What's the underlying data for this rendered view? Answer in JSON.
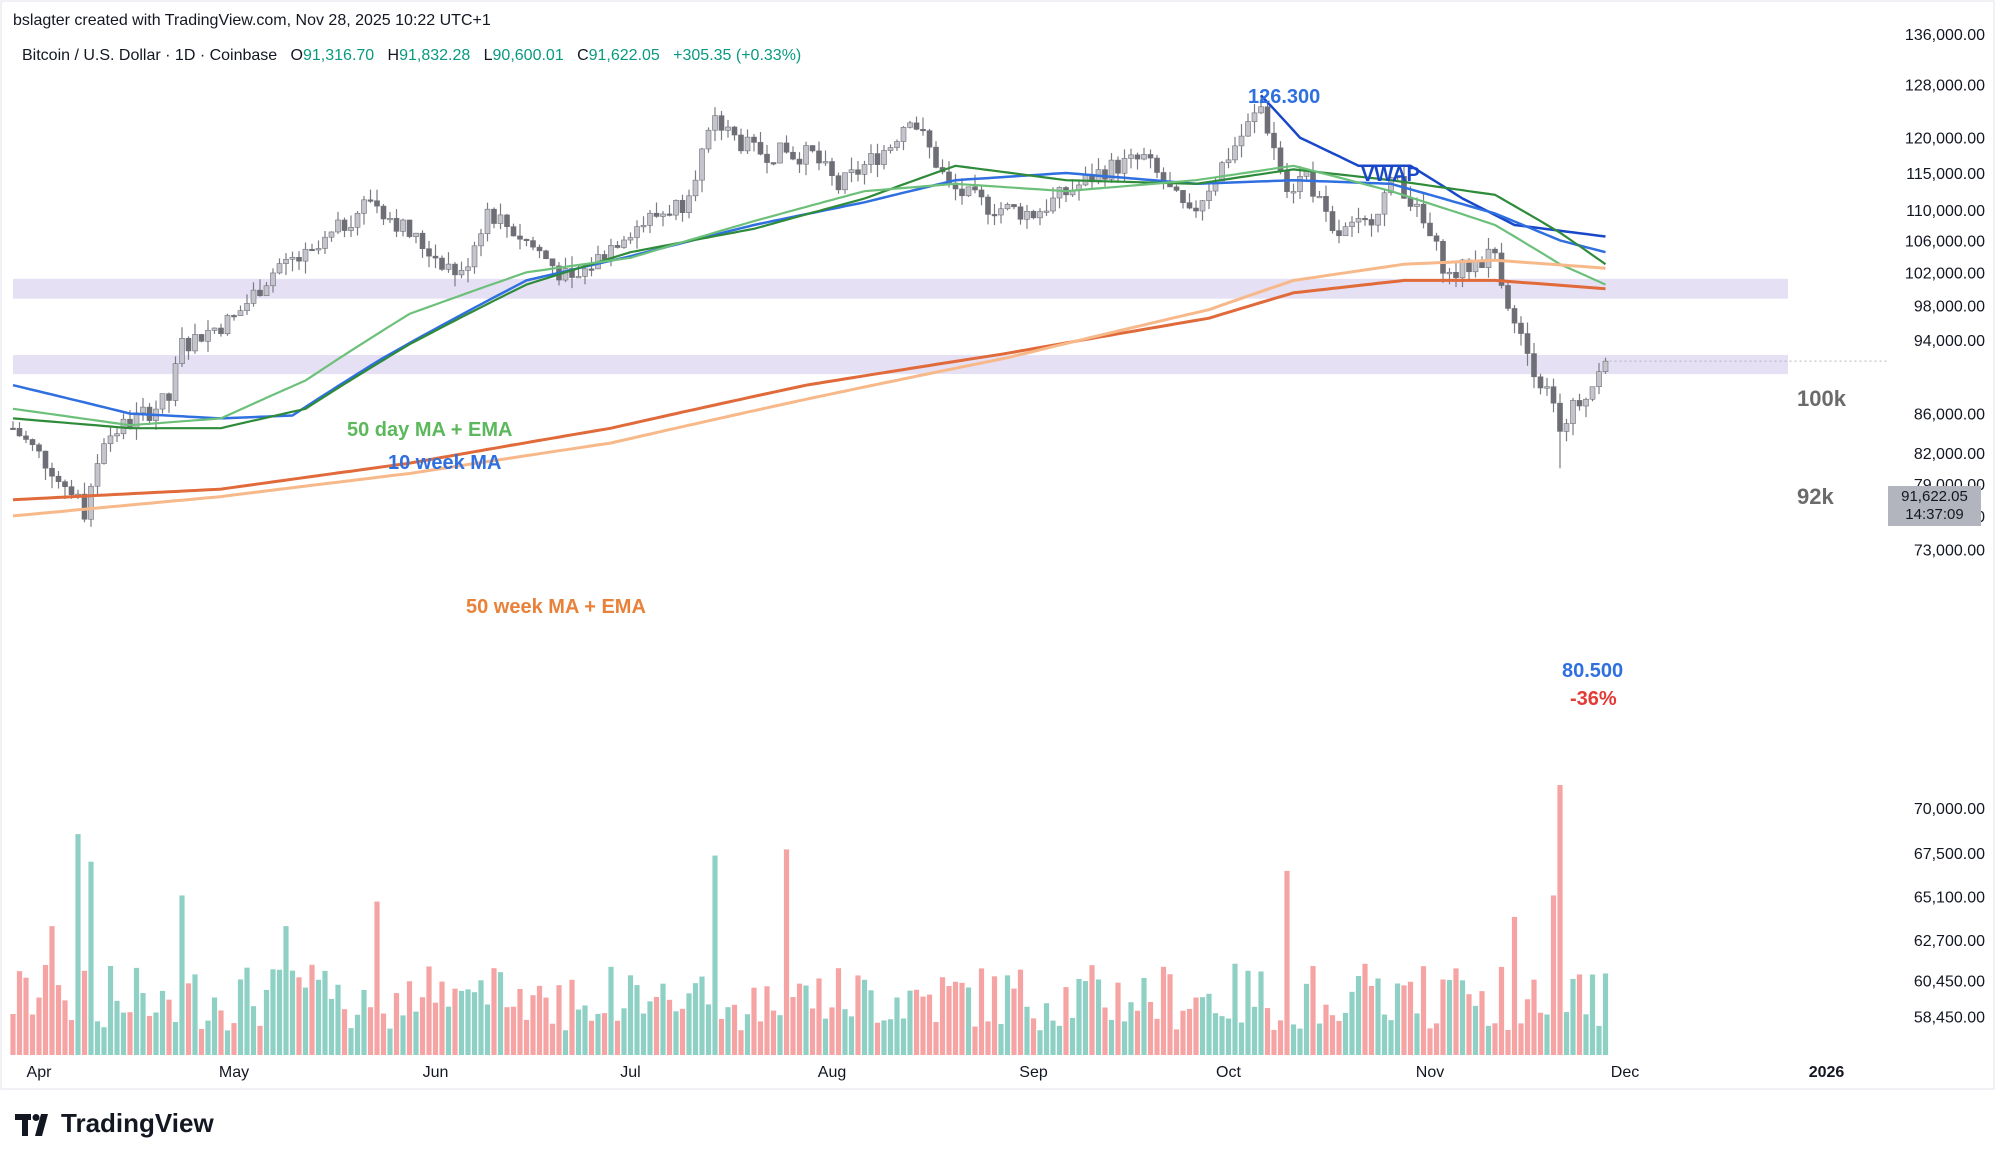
{
  "header": {
    "created_by": "bslagter created with TradingView.com, Nov 28, 2025 10:22 UTC+1",
    "symbol": "Bitcoin / U.S. Dollar · 1D · Coinbase",
    "open_label": "O",
    "open": "91,316.70",
    "high_label": "H",
    "high": "91,832.28",
    "low_label": "L",
    "low": "90,600.01",
    "close_label": "C",
    "close": "91,622.05",
    "change": "+305.35 (+0.33%)"
  },
  "annotations": {
    "high_value": "126.300",
    "vwap": "VWAP",
    "ma50": "50 day MA + EMA",
    "ma10w": "10 week MA",
    "ma50w": "50 week MA + EMA",
    "low_value": "80.500",
    "drawdown": "-36%",
    "zone_100k": "100k",
    "zone_92k": "92k"
  },
  "price_badge": {
    "price": "91,622.05",
    "countdown": "14:37:09"
  },
  "logo": {
    "text": "TradingView"
  },
  "colors": {
    "up": "#089981",
    "down": "#f23645",
    "candle": "#a9a9b0",
    "vol_up": "#8fd0c5",
    "vol_down": "#f5a3a3",
    "vwap": "#1848c9",
    "ma10w": "#2f6fe0",
    "ma50_sma": "#2e8b3a",
    "ma50_ema": "#6cc07a",
    "ma50w_sma": "#e06a3a",
    "ma50w_ema": "#f7b98a",
    "zone": "#e6e0f4",
    "blue_text": "#2f6fe0",
    "red_text": "#e53935",
    "green_text": "#5cb85c",
    "orange_text": "#e8823a"
  },
  "chart_data": {
    "type": "candlestick",
    "scale": "log",
    "ylim": [
      56600,
      137000
    ],
    "x_start": "2025-03-28",
    "x_ticks": [
      "Apr",
      "May",
      "Jun",
      "Jul",
      "Aug",
      "Sep",
      "Oct",
      "Nov",
      "Dec",
      "2026"
    ],
    "x_tick_dates": [
      "2025-04-01",
      "2025-05-01",
      "2025-06-01",
      "2025-07-01",
      "2025-08-01",
      "2025-09-01",
      "2025-10-01",
      "2025-11-01",
      "2025-12-01",
      "2026-01-01"
    ],
    "y_ticks": [
      "136,000.00",
      "128,000.00",
      "120,000.00",
      "115,000.00",
      "110,000.00",
      "106,000.00",
      "102,000.00",
      "98,000.00",
      "94,000.00",
      "86,000.00",
      "82,000.00",
      "79,000.00",
      "76,000.00",
      "73,000.00",
      "70,000.00",
      "67,500.00",
      "65,100.00",
      "62,700.00",
      "60,450.00",
      "58,450.00"
    ],
    "y_tick_values": [
      136000,
      128000,
      120000,
      115000,
      110000,
      106000,
      102000,
      98000,
      94000,
      86000,
      82000,
      79000,
      76000,
      73000,
      70000,
      67500,
      65100,
      62700,
      60450,
      58450
    ],
    "zones": [
      {
        "label": "100k",
        "from": 98800,
        "to": 101200
      },
      {
        "label": "92k",
        "from": 90200,
        "to": 92300
      }
    ],
    "close_anchors": [
      [
        "2025-03-28",
        84500
      ],
      [
        "2025-04-06",
        78500
      ],
      [
        "2025-04-08",
        76500
      ],
      [
        "2025-04-11",
        83500
      ],
      [
        "2025-04-21",
        87500
      ],
      [
        "2025-04-23",
        93500
      ],
      [
        "2025-05-01",
        96500
      ],
      [
        "2025-05-08",
        103000
      ],
      [
        "2025-05-13",
        104000
      ],
      [
        "2025-05-22",
        111500
      ],
      [
        "2025-05-29",
        106000
      ],
      [
        "2025-06-05",
        101500
      ],
      [
        "2025-06-09",
        110000
      ],
      [
        "2025-06-17",
        104500
      ],
      [
        "2025-06-22",
        100500
      ],
      [
        "2025-06-30",
        107000
      ],
      [
        "2025-07-09",
        111000
      ],
      [
        "2025-07-14",
        122000
      ],
      [
        "2025-07-20",
        118000
      ],
      [
        "2025-07-29",
        117500
      ],
      [
        "2025-08-02",
        113000
      ],
      [
        "2025-08-10",
        119000
      ],
      [
        "2025-08-13",
        123500
      ],
      [
        "2025-08-19",
        113000
      ],
      [
        "2025-08-25",
        110500
      ],
      [
        "2025-09-01",
        109500
      ],
      [
        "2025-09-12",
        115500
      ],
      [
        "2025-09-18",
        117000
      ],
      [
        "2025-09-25",
        109000
      ],
      [
        "2025-10-01",
        117500
      ],
      [
        "2025-10-06",
        124500
      ],
      [
        "2025-10-10",
        112500
      ],
      [
        "2025-10-13",
        115000
      ],
      [
        "2025-10-17",
        106500
      ],
      [
        "2025-10-22",
        108000
      ],
      [
        "2025-10-27",
        114500
      ],
      [
        "2025-11-04",
        101500
      ],
      [
        "2025-11-11",
        104500
      ],
      [
        "2025-11-14",
        95500
      ],
      [
        "2025-11-21",
        85000
      ],
      [
        "2025-11-23",
        86500
      ],
      [
        "2025-11-25",
        87500
      ],
      [
        "2025-11-28",
        91622
      ]
    ],
    "high": {
      "date": "2025-10-06",
      "value": 126300
    },
    "low": {
      "date": "2025-11-21",
      "value": 80500
    },
    "series": [
      {
        "name": "VWAP",
        "points": [
          [
            "2025-10-06",
            126300
          ],
          [
            "2025-10-12",
            120000
          ],
          [
            "2025-10-21",
            116000
          ],
          [
            "2025-10-29",
            116000
          ],
          [
            "2025-11-06",
            111500
          ],
          [
            "2025-11-14",
            108000
          ],
          [
            "2025-11-28",
            106500
          ]
        ]
      },
      {
        "name": "10 week MA",
        "points": [
          [
            "2025-03-28",
            89000
          ],
          [
            "2025-04-15",
            86000
          ],
          [
            "2025-04-29",
            85500
          ],
          [
            "2025-05-10",
            85800
          ],
          [
            "2025-05-24",
            92000
          ],
          [
            "2025-06-15",
            101000
          ],
          [
            "2025-07-01",
            104000
          ],
          [
            "2025-07-20",
            108000
          ],
          [
            "2025-08-06",
            111000
          ],
          [
            "2025-08-20",
            114000
          ],
          [
            "2025-09-06",
            115000
          ],
          [
            "2025-09-26",
            113500
          ],
          [
            "2025-10-11",
            114000
          ],
          [
            "2025-10-26",
            113500
          ],
          [
            "2025-11-11",
            109500
          ],
          [
            "2025-11-21",
            106000
          ],
          [
            "2025-11-28",
            104500
          ]
        ]
      },
      {
        "name": "50 day MA",
        "points": [
          [
            "2025-03-28",
            85500
          ],
          [
            "2025-04-15",
            84500
          ],
          [
            "2025-04-29",
            84500
          ],
          [
            "2025-05-12",
            86500
          ],
          [
            "2025-05-28",
            93500
          ],
          [
            "2025-06-15",
            100500
          ],
          [
            "2025-07-01",
            104500
          ],
          [
            "2025-07-20",
            107500
          ],
          [
            "2025-08-06",
            111500
          ],
          [
            "2025-08-20",
            116000
          ],
          [
            "2025-09-06",
            114000
          ],
          [
            "2025-09-26",
            113500
          ],
          [
            "2025-10-11",
            115500
          ],
          [
            "2025-10-26",
            114000
          ],
          [
            "2025-11-11",
            112000
          ],
          [
            "2025-11-21",
            107000
          ],
          [
            "2025-11-28",
            103000
          ]
        ]
      },
      {
        "name": "50 day EMA",
        "points": [
          [
            "2025-03-28",
            86500
          ],
          [
            "2025-04-15",
            84800
          ],
          [
            "2025-04-29",
            85500
          ],
          [
            "2025-05-12",
            89500
          ],
          [
            "2025-05-28",
            97000
          ],
          [
            "2025-06-15",
            102000
          ],
          [
            "2025-07-01",
            103800
          ],
          [
            "2025-07-20",
            108500
          ],
          [
            "2025-08-06",
            112500
          ],
          [
            "2025-08-20",
            113500
          ],
          [
            "2025-09-06",
            112500
          ],
          [
            "2025-09-26",
            114000
          ],
          [
            "2025-10-11",
            116000
          ],
          [
            "2025-10-26",
            112500
          ],
          [
            "2025-11-11",
            108000
          ],
          [
            "2025-11-21",
            103000
          ],
          [
            "2025-11-28",
            100500
          ]
        ]
      },
      {
        "name": "50 week MA",
        "points": [
          [
            "2025-03-28",
            77500
          ],
          [
            "2025-04-29",
            78500
          ],
          [
            "2025-05-28",
            81000
          ],
          [
            "2025-06-28",
            84500
          ],
          [
            "2025-07-28",
            89000
          ],
          [
            "2025-08-28",
            92500
          ],
          [
            "2025-09-28",
            96500
          ],
          [
            "2025-10-11",
            99500
          ],
          [
            "2025-10-28",
            101000
          ],
          [
            "2025-11-11",
            101000
          ],
          [
            "2025-11-28",
            100000
          ]
        ]
      },
      {
        "name": "50 week EMA",
        "points": [
          [
            "2025-03-28",
            76000
          ],
          [
            "2025-04-29",
            77800
          ],
          [
            "2025-05-28",
            80000
          ],
          [
            "2025-06-28",
            83000
          ],
          [
            "2025-07-28",
            87500
          ],
          [
            "2025-08-28",
            92000
          ],
          [
            "2025-09-28",
            97500
          ],
          [
            "2025-10-11",
            101000
          ],
          [
            "2025-10-28",
            103000
          ],
          [
            "2025-11-11",
            103500
          ],
          [
            "2025-11-28",
            102500
          ]
        ]
      }
    ],
    "volume": {
      "ylim": [
        0,
        100
      ],
      "spikes": [
        [
          "2025-04-03",
          42
        ],
        [
          "2025-04-07",
          72
        ],
        [
          "2025-04-09",
          63
        ],
        [
          "2025-04-23",
          52
        ],
        [
          "2025-05-09",
          42
        ],
        [
          "2025-05-23",
          50
        ],
        [
          "2025-07-14",
          65
        ],
        [
          "2025-07-25",
          67
        ],
        [
          "2025-10-10",
          60
        ],
        [
          "2025-11-21",
          88
        ],
        [
          "2025-11-20",
          52
        ],
        [
          "2025-11-14",
          45
        ]
      ]
    }
  }
}
